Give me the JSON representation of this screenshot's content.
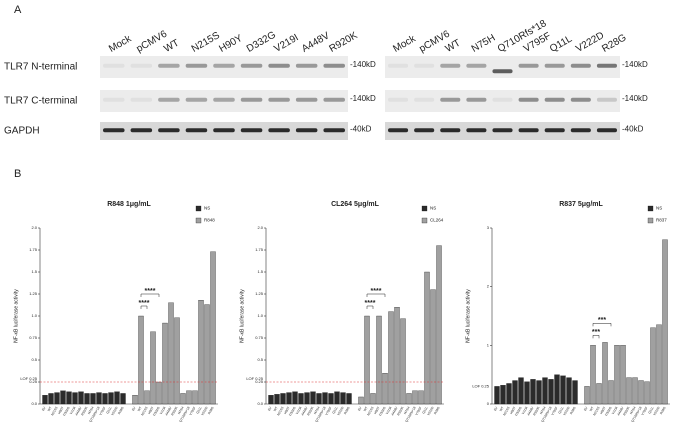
{
  "blot": {
    "panel": "A",
    "lanes_left": [
      "Mock",
      "pCMV6",
      "WT",
      "N215S",
      "H90Y",
      "D332G",
      "V219I",
      "A448V",
      "R920K"
    ],
    "lanes_right": [
      "Mock",
      "pCMV6",
      "WT",
      "N75H",
      "Q710Rfs*18",
      "V795F",
      "Q11L",
      "V222D",
      "R28G"
    ],
    "rows": [
      "TLR7 N-terminal",
      "TLR7 C-terminal",
      "GAPDH"
    ],
    "markers_left": [
      "-140kD",
      "-140kD",
      "-40kD"
    ],
    "markers_right": [
      "-140kD",
      "-140kD",
      "-40kD"
    ]
  },
  "panel_b": "B",
  "chart_data": [
    {
      "type": "bar",
      "title": "R848 1μg/mL",
      "y_label": "NF-κB luciferase activity",
      "categories": [
        "EV",
        "WT",
        "N215S",
        "H90Y",
        "D332G",
        "V219I",
        "A448V",
        "R920K",
        "N75H",
        "Q710Rfs*18",
        "V795F",
        "Q11L",
        "V222D",
        "R28G"
      ],
      "series": [
        {
          "name": "NS",
          "color": "#2b2b2b",
          "values": [
            0.1,
            0.12,
            0.13,
            0.15,
            0.14,
            0.13,
            0.14,
            0.12,
            0.12,
            0.13,
            0.12,
            0.13,
            0.14,
            0.12
          ]
        },
        {
          "name": "R848",
          "color": "#a0a0a0",
          "values": [
            0.1,
            1.0,
            0.15,
            0.82,
            0.25,
            0.92,
            1.15,
            0.98,
            0.12,
            0.15,
            0.15,
            1.18,
            1.13,
            1.73
          ]
        }
      ],
      "ylim": [
        0,
        2
      ],
      "yticks": [
        {
          "value": 0,
          "label": "0.0"
        },
        0.25,
        {
          "value": 0.5,
          "label": "0.5"
        },
        0.75,
        {
          "value": 1,
          "label": "1.0"
        },
        1.25,
        {
          "value": 1.5,
          "label": "1.5"
        },
        1.75,
        {
          "value": 2,
          "label": "2.0"
        }
      ],
      "threshold": 0.25,
      "threshold_label": "LOF 0.25",
      "threshold_line": true,
      "annotations": [
        "****",
        "****"
      ]
    },
    {
      "type": "bar",
      "title": "CL264 5μg/mL",
      "y_label": "NF-κB luciferase activity",
      "categories": [
        "EV",
        "WT",
        "N215S",
        "H90Y",
        "D332G",
        "V219I",
        "A448V",
        "R920K",
        "N75H",
        "Q710Rfs*18",
        "V795F",
        "Q11L",
        "V222D",
        "R28G"
      ],
      "series": [
        {
          "name": "NS",
          "color": "#2b2b2b",
          "values": [
            0.1,
            0.11,
            0.12,
            0.13,
            0.14,
            0.12,
            0.13,
            0.14,
            0.12,
            0.13,
            0.12,
            0.14,
            0.13,
            0.12
          ]
        },
        {
          "name": "CL264",
          "color": "#a0a0a0",
          "values": [
            0.08,
            1.0,
            0.12,
            1.0,
            0.35,
            1.05,
            1.1,
            0.97,
            0.12,
            0.15,
            0.15,
            1.5,
            1.3,
            1.8
          ]
        }
      ],
      "ylim": [
        0,
        2
      ],
      "yticks": [
        {
          "value": 0,
          "label": "0.0"
        },
        0.25,
        {
          "value": 0.5,
          "label": "0.5"
        },
        0.75,
        {
          "value": 1,
          "label": "1.0"
        },
        1.25,
        {
          "value": 1.5,
          "label": "1.5"
        },
        1.75,
        {
          "value": 2,
          "label": "2.0"
        }
      ],
      "threshold": 0.25,
      "threshold_label": "LOF 0.25",
      "threshold_line": true,
      "annotations": [
        "****",
        "****"
      ]
    },
    {
      "type": "bar",
      "title": "R837 5μg/mL",
      "y_label": "NF-κB luciferase activity",
      "categories": [
        "EV",
        "WT",
        "N215S",
        "H90Y",
        "D332G",
        "V219I",
        "A448V",
        "R920K",
        "N75H",
        "Q710Rfs*18",
        "V795F",
        "Q11L",
        "V222D",
        "R28G"
      ],
      "series": [
        {
          "name": "NS",
          "color": "#2b2b2b",
          "values": [
            0.3,
            0.32,
            0.35,
            0.4,
            0.45,
            0.38,
            0.42,
            0.4,
            0.45,
            0.42,
            0.5,
            0.48,
            0.45,
            0.4
          ]
        },
        {
          "name": "R837",
          "color": "#a0a0a0",
          "values": [
            0.3,
            1.0,
            0.35,
            1.05,
            0.4,
            1.0,
            1.0,
            0.45,
            0.45,
            0.4,
            0.38,
            1.3,
            1.35,
            2.8
          ]
        }
      ],
      "ylim": [
        0,
        3
      ],
      "yticks": [
        0,
        1,
        2,
        3
      ],
      "threshold": 0.25,
      "threshold_label": "LOF 0.25",
      "threshold_line": false,
      "annotations": [
        "***",
        "***"
      ]
    }
  ]
}
